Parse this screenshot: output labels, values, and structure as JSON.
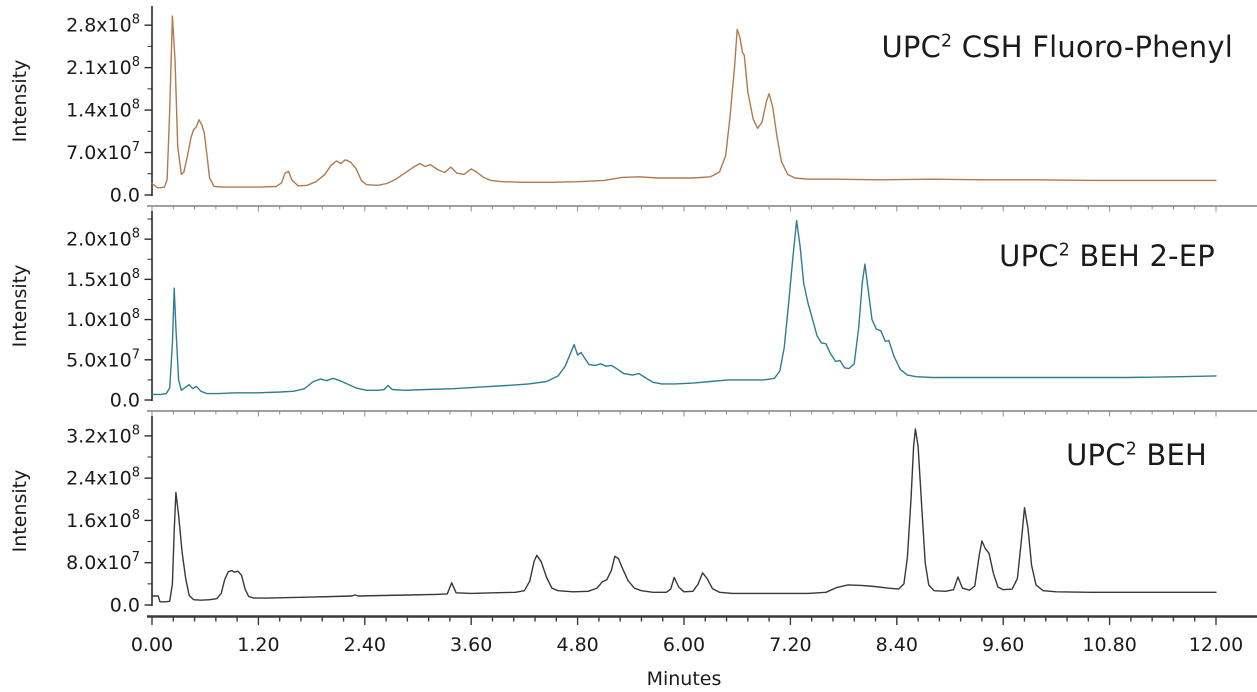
{
  "figure": {
    "xlabel": "Minutes",
    "ylabel": "Intensity",
    "x_ticks": [
      "0.00",
      "1.20",
      "2.40",
      "3.60",
      "4.80",
      "6.00",
      "7.20",
      "8.40",
      "9.60",
      "10.80",
      "12.00"
    ],
    "x_tick_values": [
      0,
      1.2,
      2.4,
      3.6,
      4.8,
      6.0,
      7.2,
      8.4,
      9.6,
      10.8,
      12.0
    ],
    "x_minor_step": 0.24,
    "xlim": [
      0,
      12
    ],
    "background": "#ffffff",
    "text_color": "#1b1b1b",
    "axis_color": "#3a3a3a",
    "separator_color": "#a0a0a0",
    "grid": "off",
    "legend": "none"
  },
  "chart_data": [
    {
      "type": "line",
      "title_prefix": "UPC",
      "title_sup": "2",
      "title_rest": " CSH Fluoro-Phenyl",
      "color": "#b2794e",
      "xlabel": "Minutes",
      "ylabel": "Intensity",
      "xlim": [
        0,
        12
      ],
      "y_scale_note": "intensity values in units of 1e7 counts",
      "ylim_e7": [
        0,
        30.5
      ],
      "y_ticks": [
        {
          "v": 28,
          "label": "2.8x10^{8}"
        },
        {
          "v": 21,
          "label": "2.1x10^{8}"
        },
        {
          "v": 14,
          "label": "1.4x10^{8}"
        },
        {
          "v": 7,
          "label": "7.0x10^{7}"
        },
        {
          "v": 0,
          "label": "0.0"
        }
      ],
      "points": [
        [
          0,
          1.9
        ],
        [
          0.06,
          1.2
        ],
        [
          0.1,
          1.2
        ],
        [
          0.14,
          1.3
        ],
        [
          0.17,
          2.5
        ],
        [
          0.2,
          14
        ],
        [
          0.23,
          29.5
        ],
        [
          0.26,
          22
        ],
        [
          0.29,
          8
        ],
        [
          0.33,
          3.4
        ],
        [
          0.36,
          3.8
        ],
        [
          0.4,
          6.5
        ],
        [
          0.44,
          9.5
        ],
        [
          0.47,
          10.8
        ],
        [
          0.5,
          11.2
        ],
        [
          0.53,
          12.4
        ],
        [
          0.56,
          11.6
        ],
        [
          0.59,
          10.2
        ],
        [
          0.62,
          6.5
        ],
        [
          0.65,
          2.8
        ],
        [
          0.7,
          1.4
        ],
        [
          0.8,
          1.3
        ],
        [
          1.0,
          1.3
        ],
        [
          1.2,
          1.3
        ],
        [
          1.4,
          1.4
        ],
        [
          1.46,
          2.0
        ],
        [
          1.5,
          3.6
        ],
        [
          1.54,
          3.9
        ],
        [
          1.58,
          2.4
        ],
        [
          1.65,
          1.5
        ],
        [
          1.75,
          1.6
        ],
        [
          1.85,
          2.2
        ],
        [
          1.95,
          3.4
        ],
        [
          2.02,
          4.9
        ],
        [
          2.08,
          5.6
        ],
        [
          2.13,
          5.2
        ],
        [
          2.18,
          5.8
        ],
        [
          2.24,
          5.4
        ],
        [
          2.3,
          4.4
        ],
        [
          2.36,
          2.4
        ],
        [
          2.42,
          1.7
        ],
        [
          2.55,
          1.6
        ],
        [
          2.65,
          1.9
        ],
        [
          2.75,
          2.6
        ],
        [
          2.85,
          3.6
        ],
        [
          2.95,
          4.6
        ],
        [
          3.02,
          5.2
        ],
        [
          3.08,
          4.7
        ],
        [
          3.14,
          5.0
        ],
        [
          3.22,
          4.2
        ],
        [
          3.3,
          3.7
        ],
        [
          3.37,
          4.6
        ],
        [
          3.44,
          3.6
        ],
        [
          3.52,
          3.4
        ],
        [
          3.6,
          4.3
        ],
        [
          3.66,
          3.8
        ],
        [
          3.74,
          2.9
        ],
        [
          3.82,
          2.4
        ],
        [
          3.95,
          2.2
        ],
        [
          4.2,
          2.1
        ],
        [
          4.5,
          2.1
        ],
        [
          4.8,
          2.2
        ],
        [
          5.1,
          2.4
        ],
        [
          5.3,
          2.9
        ],
        [
          5.5,
          3.0
        ],
        [
          5.7,
          2.8
        ],
        [
          5.9,
          2.8
        ],
        [
          6.1,
          2.8
        ],
        [
          6.3,
          3.0
        ],
        [
          6.4,
          3.8
        ],
        [
          6.47,
          6.5
        ],
        [
          6.52,
          13
        ],
        [
          6.57,
          21
        ],
        [
          6.6,
          27.3
        ],
        [
          6.63,
          26
        ],
        [
          6.66,
          23.5
        ],
        [
          6.68,
          23.0
        ],
        [
          6.72,
          17
        ],
        [
          6.78,
          12.5
        ],
        [
          6.83,
          11.0
        ],
        [
          6.88,
          12.0
        ],
        [
          6.93,
          15.5
        ],
        [
          6.96,
          16.7
        ],
        [
          7.0,
          14.5
        ],
        [
          7.05,
          9.5
        ],
        [
          7.1,
          5.5
        ],
        [
          7.17,
          3.4
        ],
        [
          7.25,
          2.8
        ],
        [
          7.4,
          2.6
        ],
        [
          7.7,
          2.6
        ],
        [
          8.2,
          2.5
        ],
        [
          8.8,
          2.6
        ],
        [
          9.4,
          2.5
        ],
        [
          10.0,
          2.5
        ],
        [
          10.6,
          2.4
        ],
        [
          11.2,
          2.4
        ],
        [
          12.0,
          2.4
        ]
      ]
    },
    {
      "type": "line",
      "title_prefix": "UPC",
      "title_sup": "2",
      "title_rest": " BEH 2-EP",
      "color": "#2e7e93",
      "xlabel": "Minutes",
      "ylabel": "Intensity",
      "xlim": [
        0,
        12
      ],
      "y_scale_note": "intensity values in units of 1e7 counts",
      "ylim_e7": [
        0,
        23
      ],
      "y_ticks": [
        {
          "v": 20,
          "label": "2.0x10^{8}"
        },
        {
          "v": 15,
          "label": "1.5x10^{8}"
        },
        {
          "v": 10,
          "label": "1.0x10^{8}"
        },
        {
          "v": 5,
          "label": "5.0x10^{7}"
        },
        {
          "v": 0,
          "label": "0.0"
        }
      ],
      "points": [
        [
          0,
          0.7
        ],
        [
          0.1,
          0.7
        ],
        [
          0.16,
          0.8
        ],
        [
          0.2,
          1.5
        ],
        [
          0.23,
          7
        ],
        [
          0.25,
          13.9
        ],
        [
          0.27,
          9
        ],
        [
          0.3,
          2.5
        ],
        [
          0.33,
          1.2
        ],
        [
          0.38,
          1.6
        ],
        [
          0.42,
          1.9
        ],
        [
          0.46,
          1.4
        ],
        [
          0.5,
          1.7
        ],
        [
          0.55,
          1.1
        ],
        [
          0.62,
          0.8
        ],
        [
          0.75,
          0.8
        ],
        [
          0.95,
          0.9
        ],
        [
          1.2,
          0.9
        ],
        [
          1.45,
          1.0
        ],
        [
          1.6,
          1.1
        ],
        [
          1.72,
          1.4
        ],
        [
          1.82,
          2.3
        ],
        [
          1.9,
          2.6
        ],
        [
          1.97,
          2.4
        ],
        [
          2.04,
          2.7
        ],
        [
          2.12,
          2.4
        ],
        [
          2.2,
          2.0
        ],
        [
          2.3,
          1.5
        ],
        [
          2.42,
          1.2
        ],
        [
          2.55,
          1.2
        ],
        [
          2.62,
          1.3
        ],
        [
          2.66,
          1.8
        ],
        [
          2.71,
          1.3
        ],
        [
          2.85,
          1.2
        ],
        [
          3.1,
          1.3
        ],
        [
          3.4,
          1.4
        ],
        [
          3.7,
          1.6
        ],
        [
          4.0,
          1.8
        ],
        [
          4.25,
          2.0
        ],
        [
          4.45,
          2.3
        ],
        [
          4.58,
          3.0
        ],
        [
          4.66,
          4.2
        ],
        [
          4.72,
          5.8
        ],
        [
          4.76,
          6.9
        ],
        [
          4.8,
          5.6
        ],
        [
          4.84,
          5.9
        ],
        [
          4.88,
          5.2
        ],
        [
          4.93,
          4.4
        ],
        [
          5.0,
          4.3
        ],
        [
          5.06,
          4.5
        ],
        [
          5.12,
          4.2
        ],
        [
          5.18,
          4.3
        ],
        [
          5.24,
          3.9
        ],
        [
          5.32,
          3.3
        ],
        [
          5.42,
          3.1
        ],
        [
          5.49,
          3.3
        ],
        [
          5.56,
          2.8
        ],
        [
          5.65,
          2.2
        ],
        [
          5.75,
          2.0
        ],
        [
          5.9,
          2.0
        ],
        [
          6.1,
          2.1
        ],
        [
          6.3,
          2.3
        ],
        [
          6.5,
          2.5
        ],
        [
          6.7,
          2.5
        ],
        [
          6.9,
          2.5
        ],
        [
          7.02,
          2.7
        ],
        [
          7.08,
          3.6
        ],
        [
          7.13,
          6.5
        ],
        [
          7.18,
          12
        ],
        [
          7.23,
          18
        ],
        [
          7.27,
          22.3
        ],
        [
          7.31,
          19
        ],
        [
          7.35,
          14.5
        ],
        [
          7.4,
          12.0
        ],
        [
          7.45,
          10.0
        ],
        [
          7.5,
          8.0
        ],
        [
          7.55,
          7.1
        ],
        [
          7.6,
          7.0
        ],
        [
          7.65,
          5.8
        ],
        [
          7.71,
          4.8
        ],
        [
          7.76,
          4.9
        ],
        [
          7.81,
          4.0
        ],
        [
          7.86,
          3.9
        ],
        [
          7.92,
          4.5
        ],
        [
          7.97,
          9.0
        ],
        [
          8.01,
          14.5
        ],
        [
          8.04,
          16.9
        ],
        [
          8.08,
          13.5
        ],
        [
          8.12,
          10.0
        ],
        [
          8.17,
          8.8
        ],
        [
          8.22,
          8.6
        ],
        [
          8.27,
          7.3
        ],
        [
          8.31,
          7.4
        ],
        [
          8.37,
          5.4
        ],
        [
          8.44,
          3.8
        ],
        [
          8.52,
          3.1
        ],
        [
          8.62,
          2.9
        ],
        [
          8.8,
          2.8
        ],
        [
          9.2,
          2.8
        ],
        [
          9.8,
          2.8
        ],
        [
          10.4,
          2.8
        ],
        [
          11.0,
          2.8
        ],
        [
          11.6,
          2.9
        ],
        [
          12.0,
          3.0
        ]
      ]
    },
    {
      "type": "line",
      "title_prefix": "UPC",
      "title_sup": "2",
      "title_rest": " BEH",
      "color": "#383838",
      "xlabel": "Minutes",
      "ylabel": "Intensity",
      "xlim": [
        0,
        12
      ],
      "y_scale_note": "intensity values in units of 1e7 counts",
      "ylim_e7": [
        0,
        35
      ],
      "y_ticks": [
        {
          "v": 32,
          "label": "3.2x10^{8}"
        },
        {
          "v": 24,
          "label": "2.4x10^{8}"
        },
        {
          "v": 16,
          "label": "1.6x10^{8}"
        },
        {
          "v": 8,
          "label": "8.0x10^{7}"
        },
        {
          "v": 0,
          "label": "0.0"
        }
      ],
      "points": [
        [
          0,
          1.7
        ],
        [
          0.07,
          1.7
        ],
        [
          0.09,
          0.6
        ],
        [
          0.15,
          0.6
        ],
        [
          0.2,
          0.7
        ],
        [
          0.23,
          4
        ],
        [
          0.25,
          14
        ],
        [
          0.27,
          21.3
        ],
        [
          0.3,
          17
        ],
        [
          0.34,
          10
        ],
        [
          0.38,
          5
        ],
        [
          0.42,
          1.8
        ],
        [
          0.47,
          1.0
        ],
        [
          0.55,
          0.9
        ],
        [
          0.65,
          1.0
        ],
        [
          0.73,
          1.2
        ],
        [
          0.78,
          2.2
        ],
        [
          0.82,
          4.8
        ],
        [
          0.86,
          6.3
        ],
        [
          0.9,
          6.5
        ],
        [
          0.93,
          6.2
        ],
        [
          0.97,
          6.4
        ],
        [
          1.01,
          5.6
        ],
        [
          1.05,
          3.0
        ],
        [
          1.09,
          1.6
        ],
        [
          1.15,
          1.3
        ],
        [
          1.3,
          1.3
        ],
        [
          1.55,
          1.4
        ],
        [
          1.8,
          1.5
        ],
        [
          2.05,
          1.6
        ],
        [
          2.25,
          1.7
        ],
        [
          2.29,
          1.9
        ],
        [
          2.33,
          1.7
        ],
        [
          2.6,
          1.8
        ],
        [
          2.9,
          1.9
        ],
        [
          3.2,
          2.0
        ],
        [
          3.33,
          2.1
        ],
        [
          3.38,
          4.2
        ],
        [
          3.43,
          2.3
        ],
        [
          3.6,
          2.2
        ],
        [
          3.85,
          2.3
        ],
        [
          4.1,
          2.4
        ],
        [
          4.2,
          2.7
        ],
        [
          4.26,
          4.5
        ],
        [
          4.31,
          8.3
        ],
        [
          4.34,
          9.4
        ],
        [
          4.39,
          8.2
        ],
        [
          4.45,
          5.2
        ],
        [
          4.51,
          3.2
        ],
        [
          4.58,
          2.7
        ],
        [
          4.75,
          2.5
        ],
        [
          4.92,
          2.6
        ],
        [
          5.02,
          3.2
        ],
        [
          5.08,
          4.4
        ],
        [
          5.13,
          4.8
        ],
        [
          5.18,
          6.5
        ],
        [
          5.22,
          9.2
        ],
        [
          5.26,
          8.8
        ],
        [
          5.31,
          6.8
        ],
        [
          5.37,
          4.6
        ],
        [
          5.44,
          3.2
        ],
        [
          5.52,
          2.7
        ],
        [
          5.65,
          2.4
        ],
        [
          5.8,
          2.4
        ],
        [
          5.85,
          3.0
        ],
        [
          5.89,
          5.2
        ],
        [
          5.94,
          3.4
        ],
        [
          6.0,
          2.5
        ],
        [
          6.1,
          2.6
        ],
        [
          6.16,
          4.0
        ],
        [
          6.21,
          6.1
        ],
        [
          6.26,
          5.0
        ],
        [
          6.32,
          3.1
        ],
        [
          6.4,
          2.4
        ],
        [
          6.55,
          2.2
        ],
        [
          6.8,
          2.2
        ],
        [
          7.1,
          2.2
        ],
        [
          7.4,
          2.2
        ],
        [
          7.6,
          2.4
        ],
        [
          7.72,
          3.3
        ],
        [
          7.85,
          3.8
        ],
        [
          8.0,
          3.7
        ],
        [
          8.15,
          3.5
        ],
        [
          8.3,
          3.2
        ],
        [
          8.42,
          3.0
        ],
        [
          8.48,
          4.0
        ],
        [
          8.52,
          9
        ],
        [
          8.56,
          20
        ],
        [
          8.59,
          30
        ],
        [
          8.61,
          33.3
        ],
        [
          8.64,
          30
        ],
        [
          8.68,
          19
        ],
        [
          8.72,
          8
        ],
        [
          8.76,
          3.8
        ],
        [
          8.82,
          2.7
        ],
        [
          8.95,
          2.6
        ],
        [
          9.04,
          2.9
        ],
        [
          9.09,
          5.3
        ],
        [
          9.14,
          3.2
        ],
        [
          9.22,
          2.8
        ],
        [
          9.28,
          3.6
        ],
        [
          9.33,
          9.5
        ],
        [
          9.36,
          12.1
        ],
        [
          9.4,
          10.6
        ],
        [
          9.44,
          9.8
        ],
        [
          9.49,
          6.0
        ],
        [
          9.54,
          3.4
        ],
        [
          9.6,
          2.9
        ],
        [
          9.7,
          3.0
        ],
        [
          9.76,
          5.0
        ],
        [
          9.81,
          13
        ],
        [
          9.84,
          18.4
        ],
        [
          9.88,
          14.5
        ],
        [
          9.92,
          7.5
        ],
        [
          9.97,
          3.8
        ],
        [
          10.05,
          2.7
        ],
        [
          10.2,
          2.5
        ],
        [
          10.6,
          2.4
        ],
        [
          11.0,
          2.4
        ],
        [
          11.4,
          2.4
        ],
        [
          11.8,
          2.4
        ],
        [
          12.0,
          2.4
        ]
      ]
    }
  ]
}
